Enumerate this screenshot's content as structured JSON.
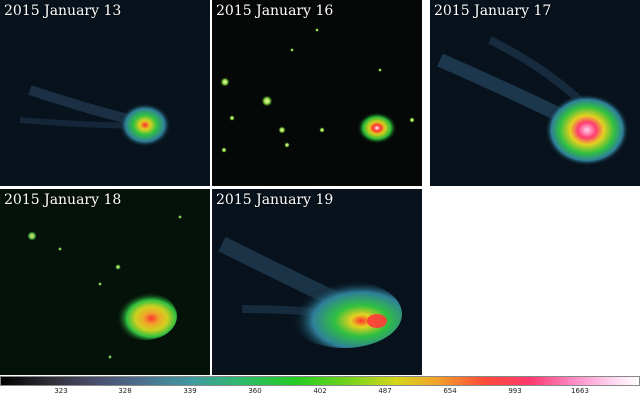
{
  "panels": [
    {
      "date": "2015 January 13"
    },
    {
      "date": "2015 January 16"
    },
    {
      "date": "2015 January 17"
    },
    {
      "date": "2015 January 18"
    },
    {
      "date": "2015 January 19"
    }
  ],
  "colorbar": {
    "ticks": [
      "323",
      "328",
      "339",
      "360",
      "402",
      "487",
      "654",
      "993",
      "1663"
    ]
  }
}
